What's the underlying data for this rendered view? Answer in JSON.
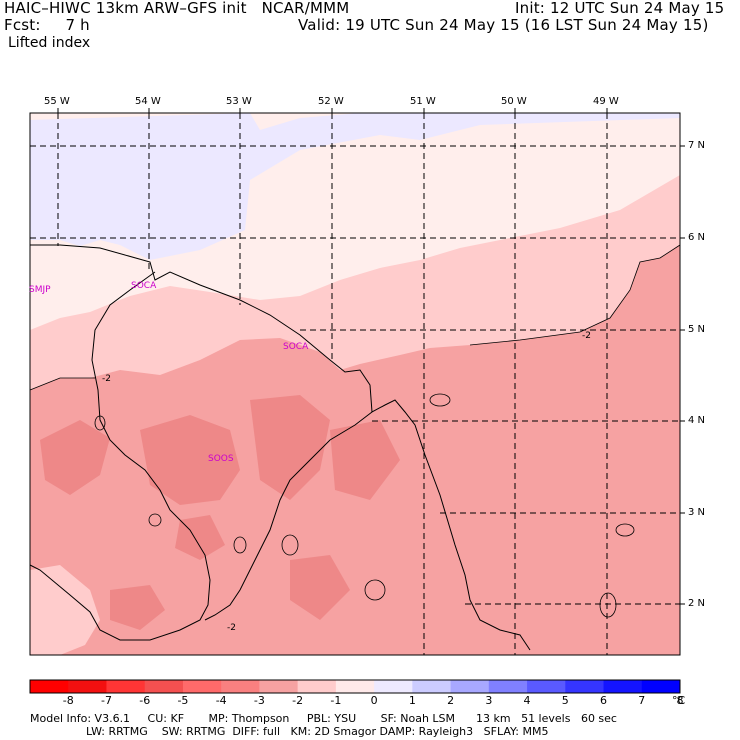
{
  "header": {
    "model_line": "HAIC–HIWC 13km ARW–GFS init   NCAR/MMM",
    "fcst_line": "Fcst:     7 h",
    "init_line": "Init: 12 UTC Sun 24 May 15",
    "valid_line": "Valid: 19 UTC Sun 24 May 15 (16 LST Sun 24 May 15)",
    "field_name": "Lifted index"
  },
  "map": {
    "lon_labels": [
      "55 W",
      "54 W",
      "53 W",
      "52 W",
      "51 W",
      "50 W",
      "49 W"
    ],
    "lat_labels": [
      "7 N",
      "6 N",
      "5 N",
      "4 N",
      "3 N",
      "2 N"
    ],
    "stations": [
      "SMJP",
      "SOCA",
      "SOCA",
      "SOOS"
    ],
    "contour_labels": [
      "-2",
      "-2",
      "-2"
    ],
    "colors": {
      "li_pos_0_1": "#ece8ff",
      "li_neg_0_1": "#ffeeec",
      "li_neg_1_2": "#ffcccc",
      "li_neg_2_3": "#f6a2a2",
      "li_neg_3_4": "#ee8888"
    }
  },
  "colorbar": {
    "labels": [
      "-8",
      "-7",
      "-6",
      "-5",
      "-4",
      "-3",
      "-2",
      "-1",
      "0",
      "1",
      "2",
      "3",
      "4",
      "5",
      "6",
      "7",
      "8"
    ],
    "unit": "°C",
    "colors": [
      "#ff0000",
      "#f31010",
      "#ff3535",
      "#f45050",
      "#ff6a6a",
      "#f98080",
      "#f6a2a2",
      "#ffcccc",
      "#ffeaea",
      "#eeeaff",
      "#ccccff",
      "#a8a8ff",
      "#8080ff",
      "#5a5aff",
      "#3535ff",
      "#1414ff",
      "#0000ff"
    ]
  },
  "footer": {
    "line1": "Model Info: V3.6.1     CU: KF       MP: Thompson     PBL: YSU       SF: Noah LSM      13 km   51 levels   60 sec",
    "line2": "                LW: RRTMG    SW: RRTMG  DIFF: full   KM: 2D Smagor DAMP: Rayleigh3   SFLAY: MM5"
  }
}
